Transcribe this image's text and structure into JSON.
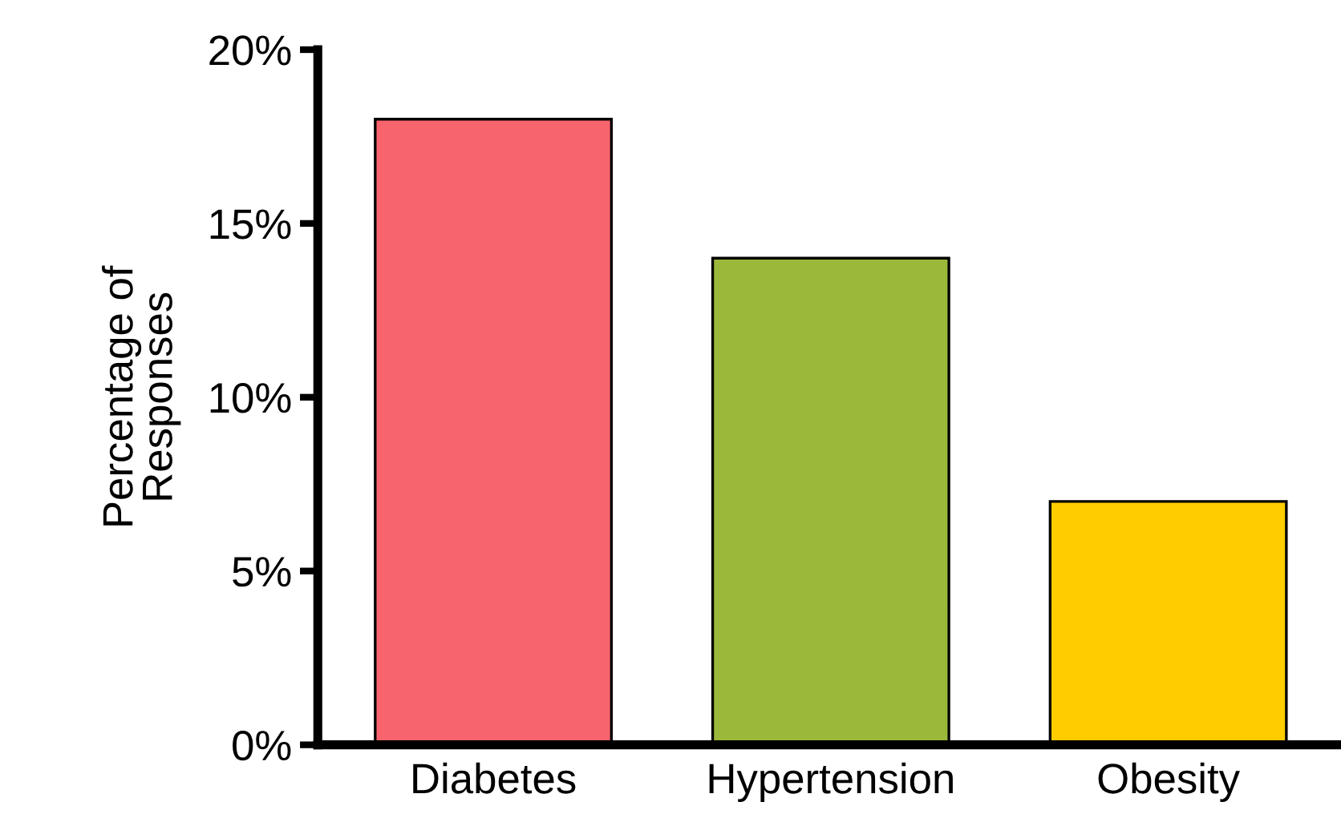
{
  "chart_data": {
    "type": "bar",
    "ylabel": "Percentage of\nResponses",
    "categories": [
      "Diabetes",
      "Hypertension",
      "Obesity"
    ],
    "values": [
      18,
      14,
      7
    ],
    "colors": [
      "#f7646e",
      "#9cb83a",
      "#ffcc00"
    ],
    "ylim": [
      0,
      20
    ],
    "yticks": [
      {
        "value": 0,
        "label": "0%"
      },
      {
        "value": 5,
        "label": "5%"
      },
      {
        "value": 10,
        "label": "10%"
      },
      {
        "value": 15,
        "label": "15%"
      },
      {
        "value": 20,
        "label": "20%"
      }
    ],
    "grid": false,
    "legend": false
  }
}
